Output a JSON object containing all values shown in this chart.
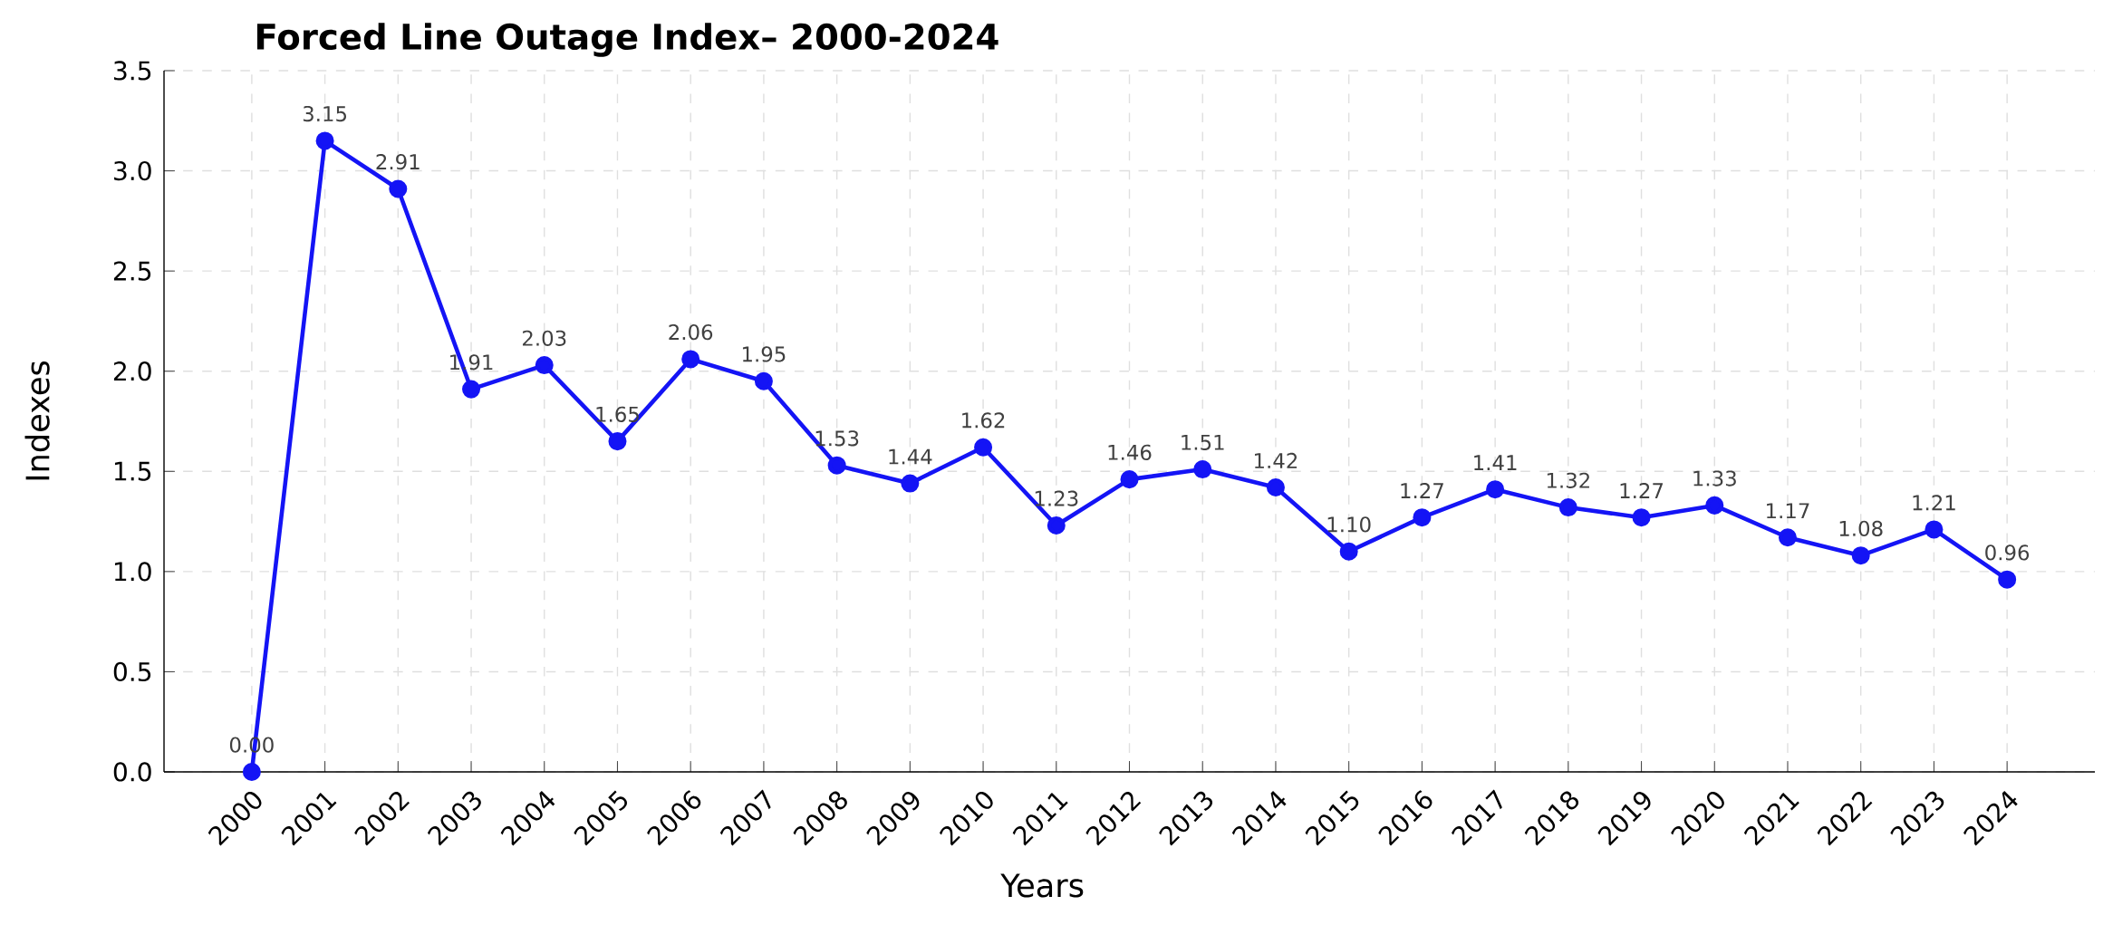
{
  "chart_data": {
    "type": "line",
    "title": "Forced Line Outage Index– 2000-2024",
    "xlabel": "Years",
    "ylabel": "Indexes",
    "categories": [
      "2000",
      "2001",
      "2002",
      "2003",
      "2004",
      "2005",
      "2006",
      "2007",
      "2008",
      "2009",
      "2010",
      "2011",
      "2012",
      "2013",
      "2014",
      "2015",
      "2016",
      "2017",
      "2018",
      "2019",
      "2020",
      "2021",
      "2022",
      "2023",
      "2024"
    ],
    "series": [
      {
        "color": "#1414f5",
        "values": [
          0.0,
          3.15,
          2.91,
          1.91,
          2.03,
          1.65,
          2.06,
          1.95,
          1.53,
          1.44,
          1.62,
          1.23,
          1.46,
          1.51,
          1.42,
          1.1,
          1.27,
          1.41,
          1.32,
          1.27,
          1.33,
          1.17,
          1.08,
          1.21,
          0.96
        ],
        "value_labels": [
          "0.00",
          "3.15",
          "2.91",
          "1.91",
          "2.03",
          "1.65",
          "2.06",
          "1.95",
          "1.53",
          "1.44",
          "1.62",
          "1.23",
          "1.46",
          "1.51",
          "1.42",
          "1.10",
          "1.27",
          "1.41",
          "1.32",
          "1.27",
          "1.33",
          "1.17",
          "1.08",
          "1.21",
          "0.96"
        ]
      }
    ],
    "ylim": [
      0,
      3.5
    ],
    "yticks": [
      {
        "value": 0,
        "label": "0.0"
      },
      {
        "value": 0.5,
        "label": "0.5"
      },
      {
        "value": 1,
        "label": "1.0"
      },
      {
        "value": 1.5,
        "label": "1.5"
      },
      {
        "value": 2,
        "label": "2.0"
      },
      {
        "value": 2.5,
        "label": "2.5"
      },
      {
        "value": 3,
        "label": "3.0"
      },
      {
        "value": 3.5,
        "label": "3.5"
      }
    ],
    "grid": true,
    "marker": "circle",
    "line_style": "solid"
  }
}
